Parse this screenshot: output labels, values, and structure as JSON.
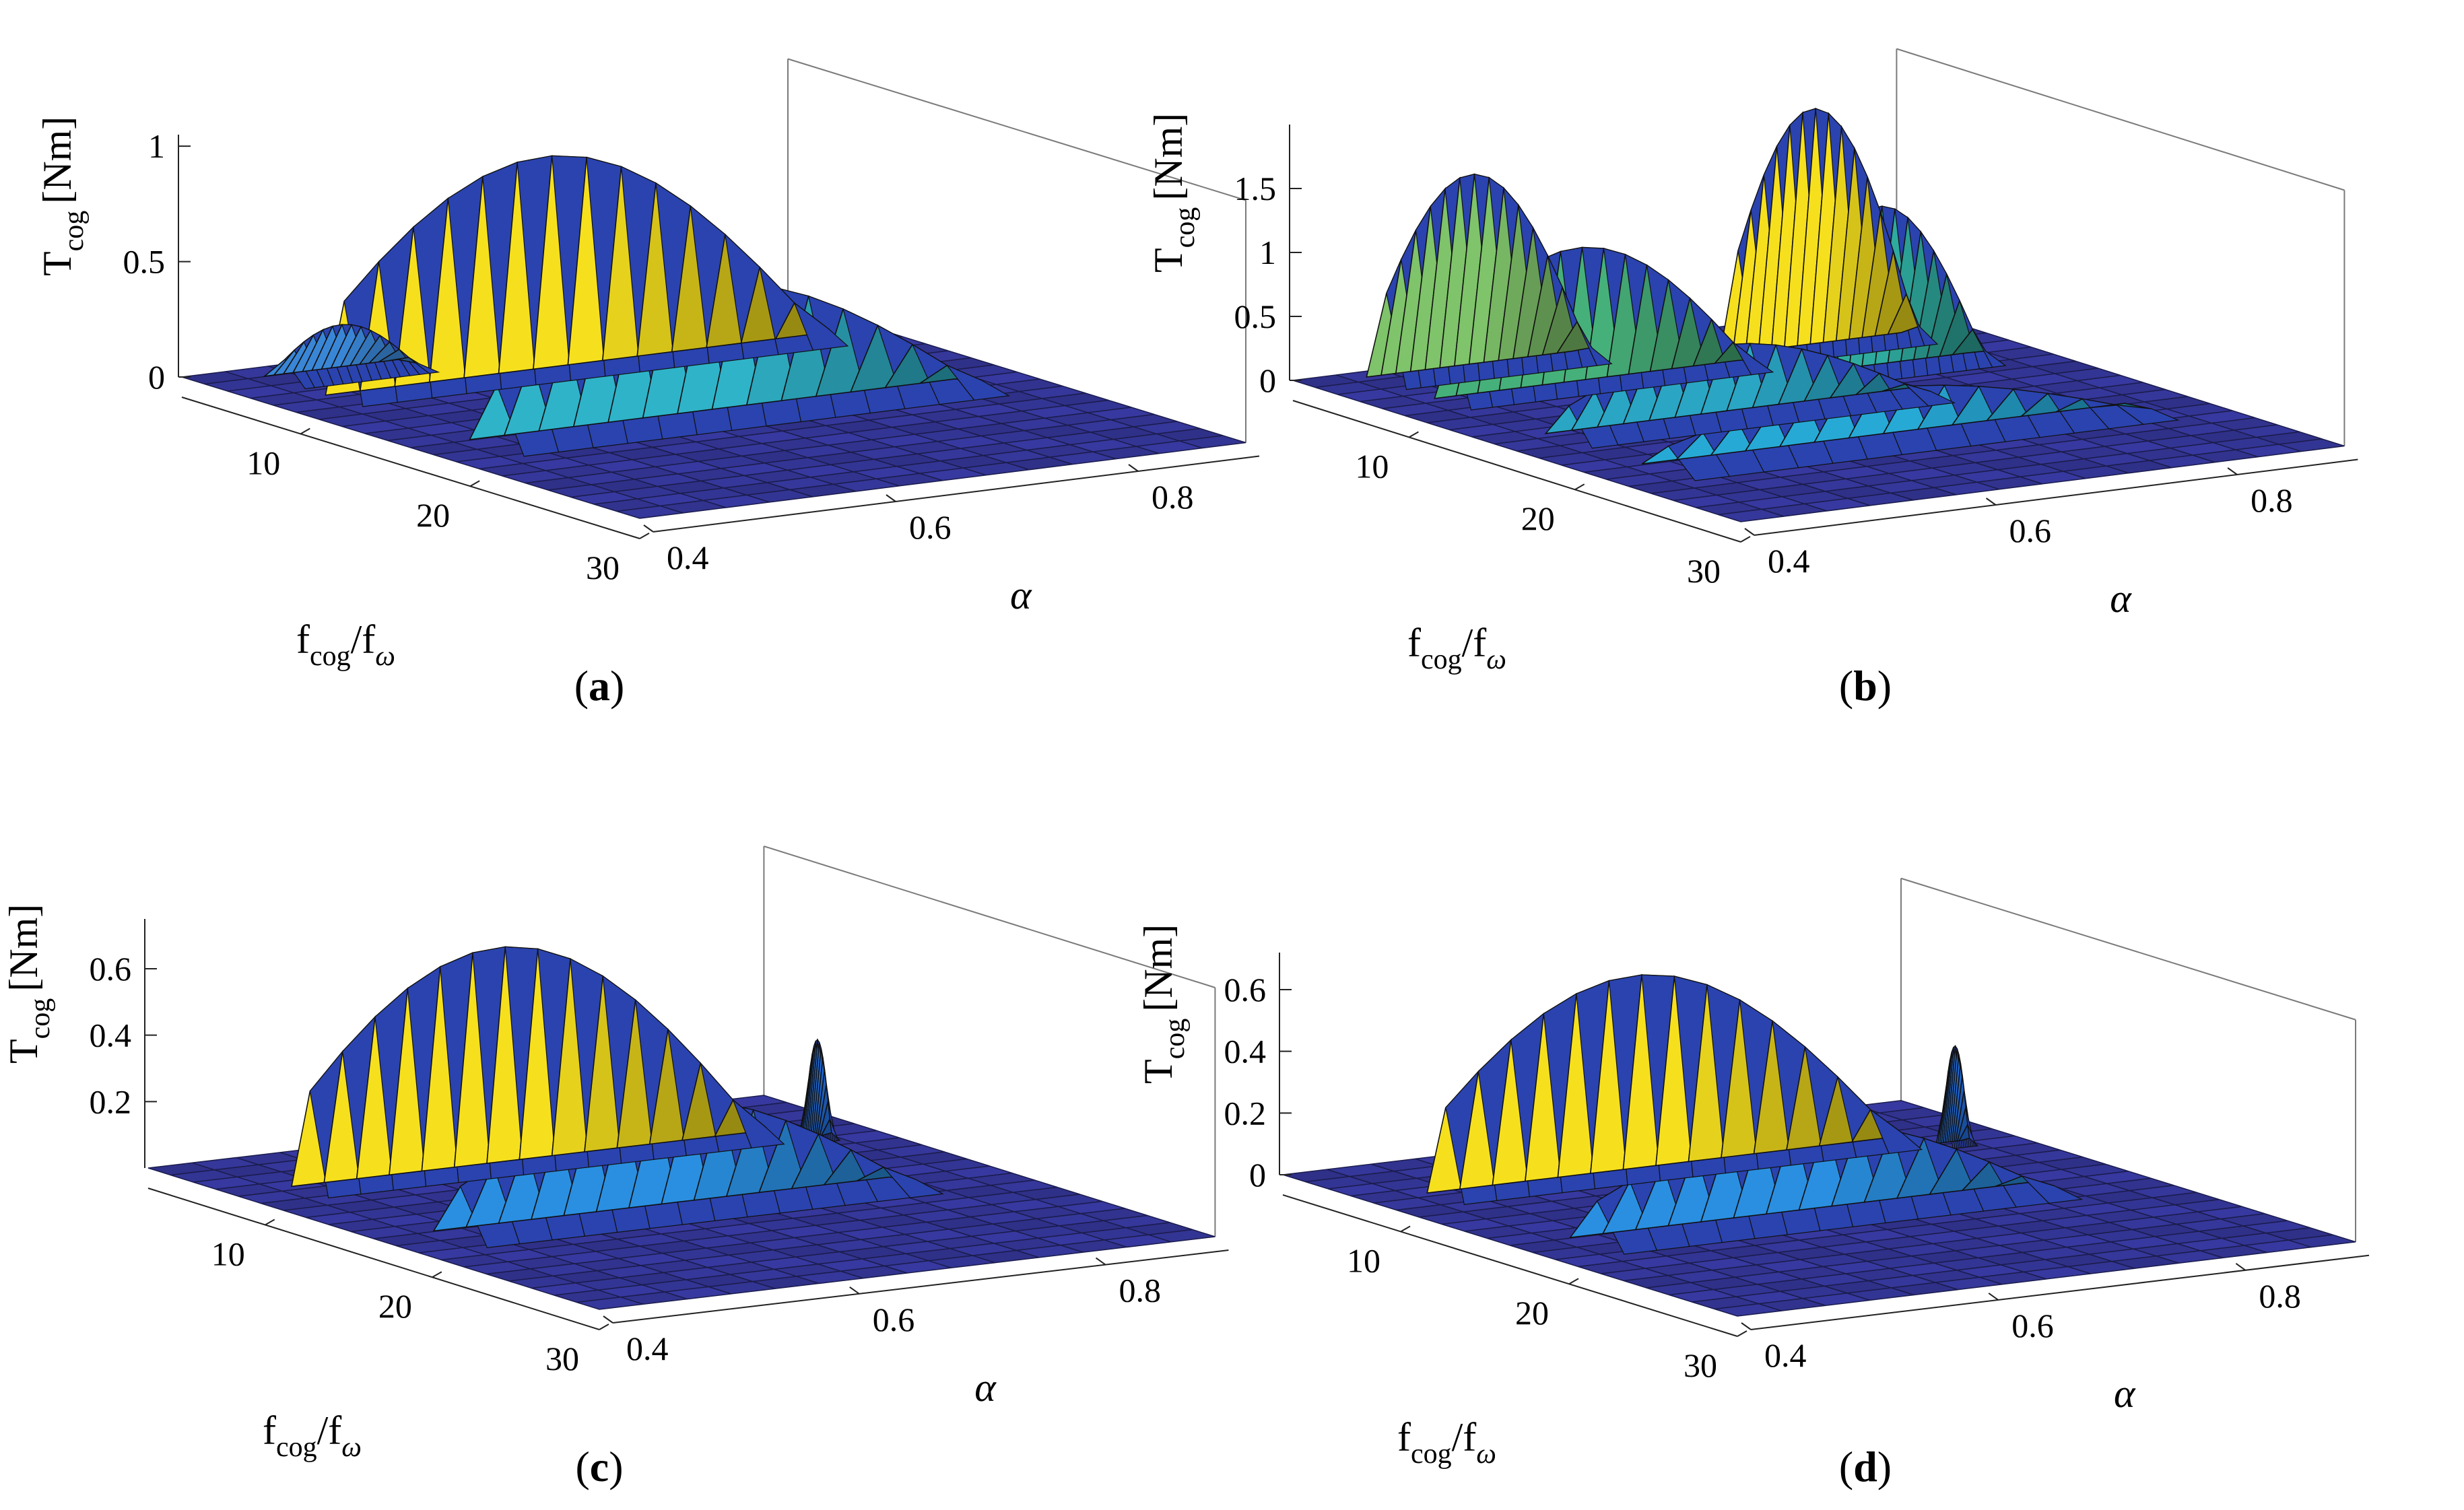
{
  "figure": {
    "panels": [
      {
        "id": "a",
        "caption": "a"
      },
      {
        "id": "b",
        "caption": "b"
      },
      {
        "id": "c",
        "caption": "c"
      },
      {
        "id": "d",
        "caption": "d"
      }
    ]
  },
  "chart_data": [
    {
      "type": "surface",
      "panel": "a",
      "zlabel_main": "T",
      "zlabel_sub": "cog",
      "zlabel_unit": "[Nm]",
      "xlabel_main": "f",
      "xlabel_sub1": "cog",
      "xlabel_slash": "/f",
      "xlabel_sub2": "ω",
      "ylabel": "α",
      "zticks": [
        "0",
        "0.5",
        "1"
      ],
      "zvals": [
        0,
        0.5,
        1
      ],
      "zlim": [
        0,
        1.05
      ],
      "xticks": [
        "10",
        "20",
        "30"
      ],
      "xvals": [
        10,
        20,
        30
      ],
      "xlim": [
        3,
        30
      ],
      "yticks": [
        "0.4",
        "0.6",
        "0.8"
      ],
      "yvals": [
        0.4,
        0.6,
        0.8
      ],
      "ylim": [
        0.4,
        0.9
      ],
      "peaks": [
        {
          "f": 5.5,
          "alpha0": 0.45,
          "alpha1": 0.56,
          "height": 0.22,
          "width": 1.2,
          "color": "#3a86d6"
        },
        {
          "f": 9,
          "alpha0": 0.45,
          "alpha1": 0.85,
          "height": 0.95,
          "width": 1.1,
          "color": "#f6e01e"
        },
        {
          "f": 18,
          "alpha0": 0.45,
          "alpha1": 0.85,
          "height": 0.6,
          "width": 1.6,
          "color": "#2fb3c9"
        }
      ]
    },
    {
      "type": "surface",
      "panel": "b",
      "zlabel_main": "T",
      "zlabel_sub": "cog",
      "zlabel_unit": "[Nm]",
      "xlabel_main": "f",
      "xlabel_sub1": "cog",
      "xlabel_slash": "/f",
      "xlabel_sub2": "ω",
      "ylabel": "α",
      "zticks": [
        "0",
        "0.5",
        "1",
        "1.5"
      ],
      "zvals": [
        0,
        0.5,
        1,
        1.5
      ],
      "zlim": [
        0,
        2.0
      ],
      "xticks": [
        "10",
        "20",
        "30"
      ],
      "xvals": [
        10,
        20,
        30
      ],
      "xlim": [
        3,
        30
      ],
      "yticks": [
        "0.4",
        "0.6",
        "0.8"
      ],
      "yvals": [
        0.4,
        0.6,
        0.8
      ],
      "ylim": [
        0.4,
        0.9
      ],
      "peaks": [
        {
          "f": 5,
          "alpha0": 0.45,
          "alpha1": 0.62,
          "height": 1.55,
          "width": 1.2,
          "color": "#7fc36a"
        },
        {
          "f": 9,
          "alpha0": 0.45,
          "alpha1": 0.7,
          "height": 1.1,
          "width": 1.1,
          "color": "#46b07a"
        },
        {
          "f": 8,
          "alpha0": 0.7,
          "alpha1": 0.85,
          "height": 1.9,
          "width": 1.1,
          "color": "#f6e01e"
        },
        {
          "f": 12,
          "alpha0": 0.7,
          "alpha1": 0.85,
          "height": 1.3,
          "width": 1.2,
          "color": "#2faa9e"
        },
        {
          "f": 16,
          "alpha0": 0.45,
          "alpha1": 0.75,
          "height": 0.6,
          "width": 1.4,
          "color": "#2aa5c4"
        },
        {
          "f": 22,
          "alpha0": 0.45,
          "alpha1": 0.85,
          "height": 0.45,
          "width": 1.6,
          "color": "#27a9d6"
        }
      ]
    },
    {
      "type": "surface",
      "panel": "c",
      "zlabel_main": "T",
      "zlabel_sub": "cog",
      "zlabel_unit": "[Nm]",
      "xlabel_main": "f",
      "xlabel_sub1": "cog",
      "xlabel_slash": "/f",
      "xlabel_sub2": "ω",
      "ylabel": "α",
      "zticks": [
        "0.2",
        "0.4",
        "0.6"
      ],
      "zvals": [
        0.2,
        0.4,
        0.6
      ],
      "zlim": [
        0,
        0.75
      ],
      "xticks": [
        "10",
        "20",
        "30"
      ],
      "xvals": [
        10,
        20,
        30
      ],
      "xlim": [
        3,
        30
      ],
      "yticks": [
        "0.4",
        "0.6",
        "0.8"
      ],
      "yvals": [
        0.4,
        0.6,
        0.8
      ],
      "ylim": [
        0.4,
        0.9
      ],
      "peaks": [
        {
          "f": 9,
          "alpha0": 0.45,
          "alpha1": 0.82,
          "height": 0.67,
          "width": 1.1,
          "color": "#f6e01e"
        },
        {
          "f": 18,
          "alpha0": 0.45,
          "alpha1": 0.82,
          "height": 0.35,
          "width": 1.6,
          "color": "#2a8fe0"
        },
        {
          "f": 10,
          "alpha0": 0.84,
          "alpha1": 0.86,
          "height": 0.3,
          "width": 0.5,
          "color": "#2474e8"
        }
      ]
    },
    {
      "type": "surface",
      "panel": "d",
      "zlabel_main": "T",
      "zlabel_sub": "cog",
      "zlabel_unit": "[Nm]",
      "xlabel_main": "f",
      "xlabel_sub1": "cog",
      "xlabel_slash": "/f",
      "xlabel_sub2": "ω",
      "ylabel": "α",
      "zticks": [
        "0",
        "0.2",
        "0.4",
        "0.6"
      ],
      "zvals": [
        0,
        0.2,
        0.4,
        0.6
      ],
      "zlim": [
        0,
        0.72
      ],
      "xticks": [
        "10",
        "20",
        "30"
      ],
      "xvals": [
        10,
        20,
        30
      ],
      "xlim": [
        3,
        30
      ],
      "yticks": [
        "0.4",
        "0.6",
        "0.8"
      ],
      "yvals": [
        0.4,
        0.6,
        0.8
      ],
      "ylim": [
        0.4,
        0.9
      ],
      "peaks": [
        {
          "f": 9,
          "alpha0": 0.45,
          "alpha1": 0.82,
          "height": 0.65,
          "width": 1.1,
          "color": "#f6e01e"
        },
        {
          "f": 18,
          "alpha0": 0.45,
          "alpha1": 0.82,
          "height": 0.32,
          "width": 1.6,
          "color": "#2a8fe0"
        },
        {
          "f": 10,
          "alpha0": 0.84,
          "alpha1": 0.86,
          "height": 0.32,
          "width": 0.5,
          "color": "#2474e8"
        }
      ]
    }
  ]
}
